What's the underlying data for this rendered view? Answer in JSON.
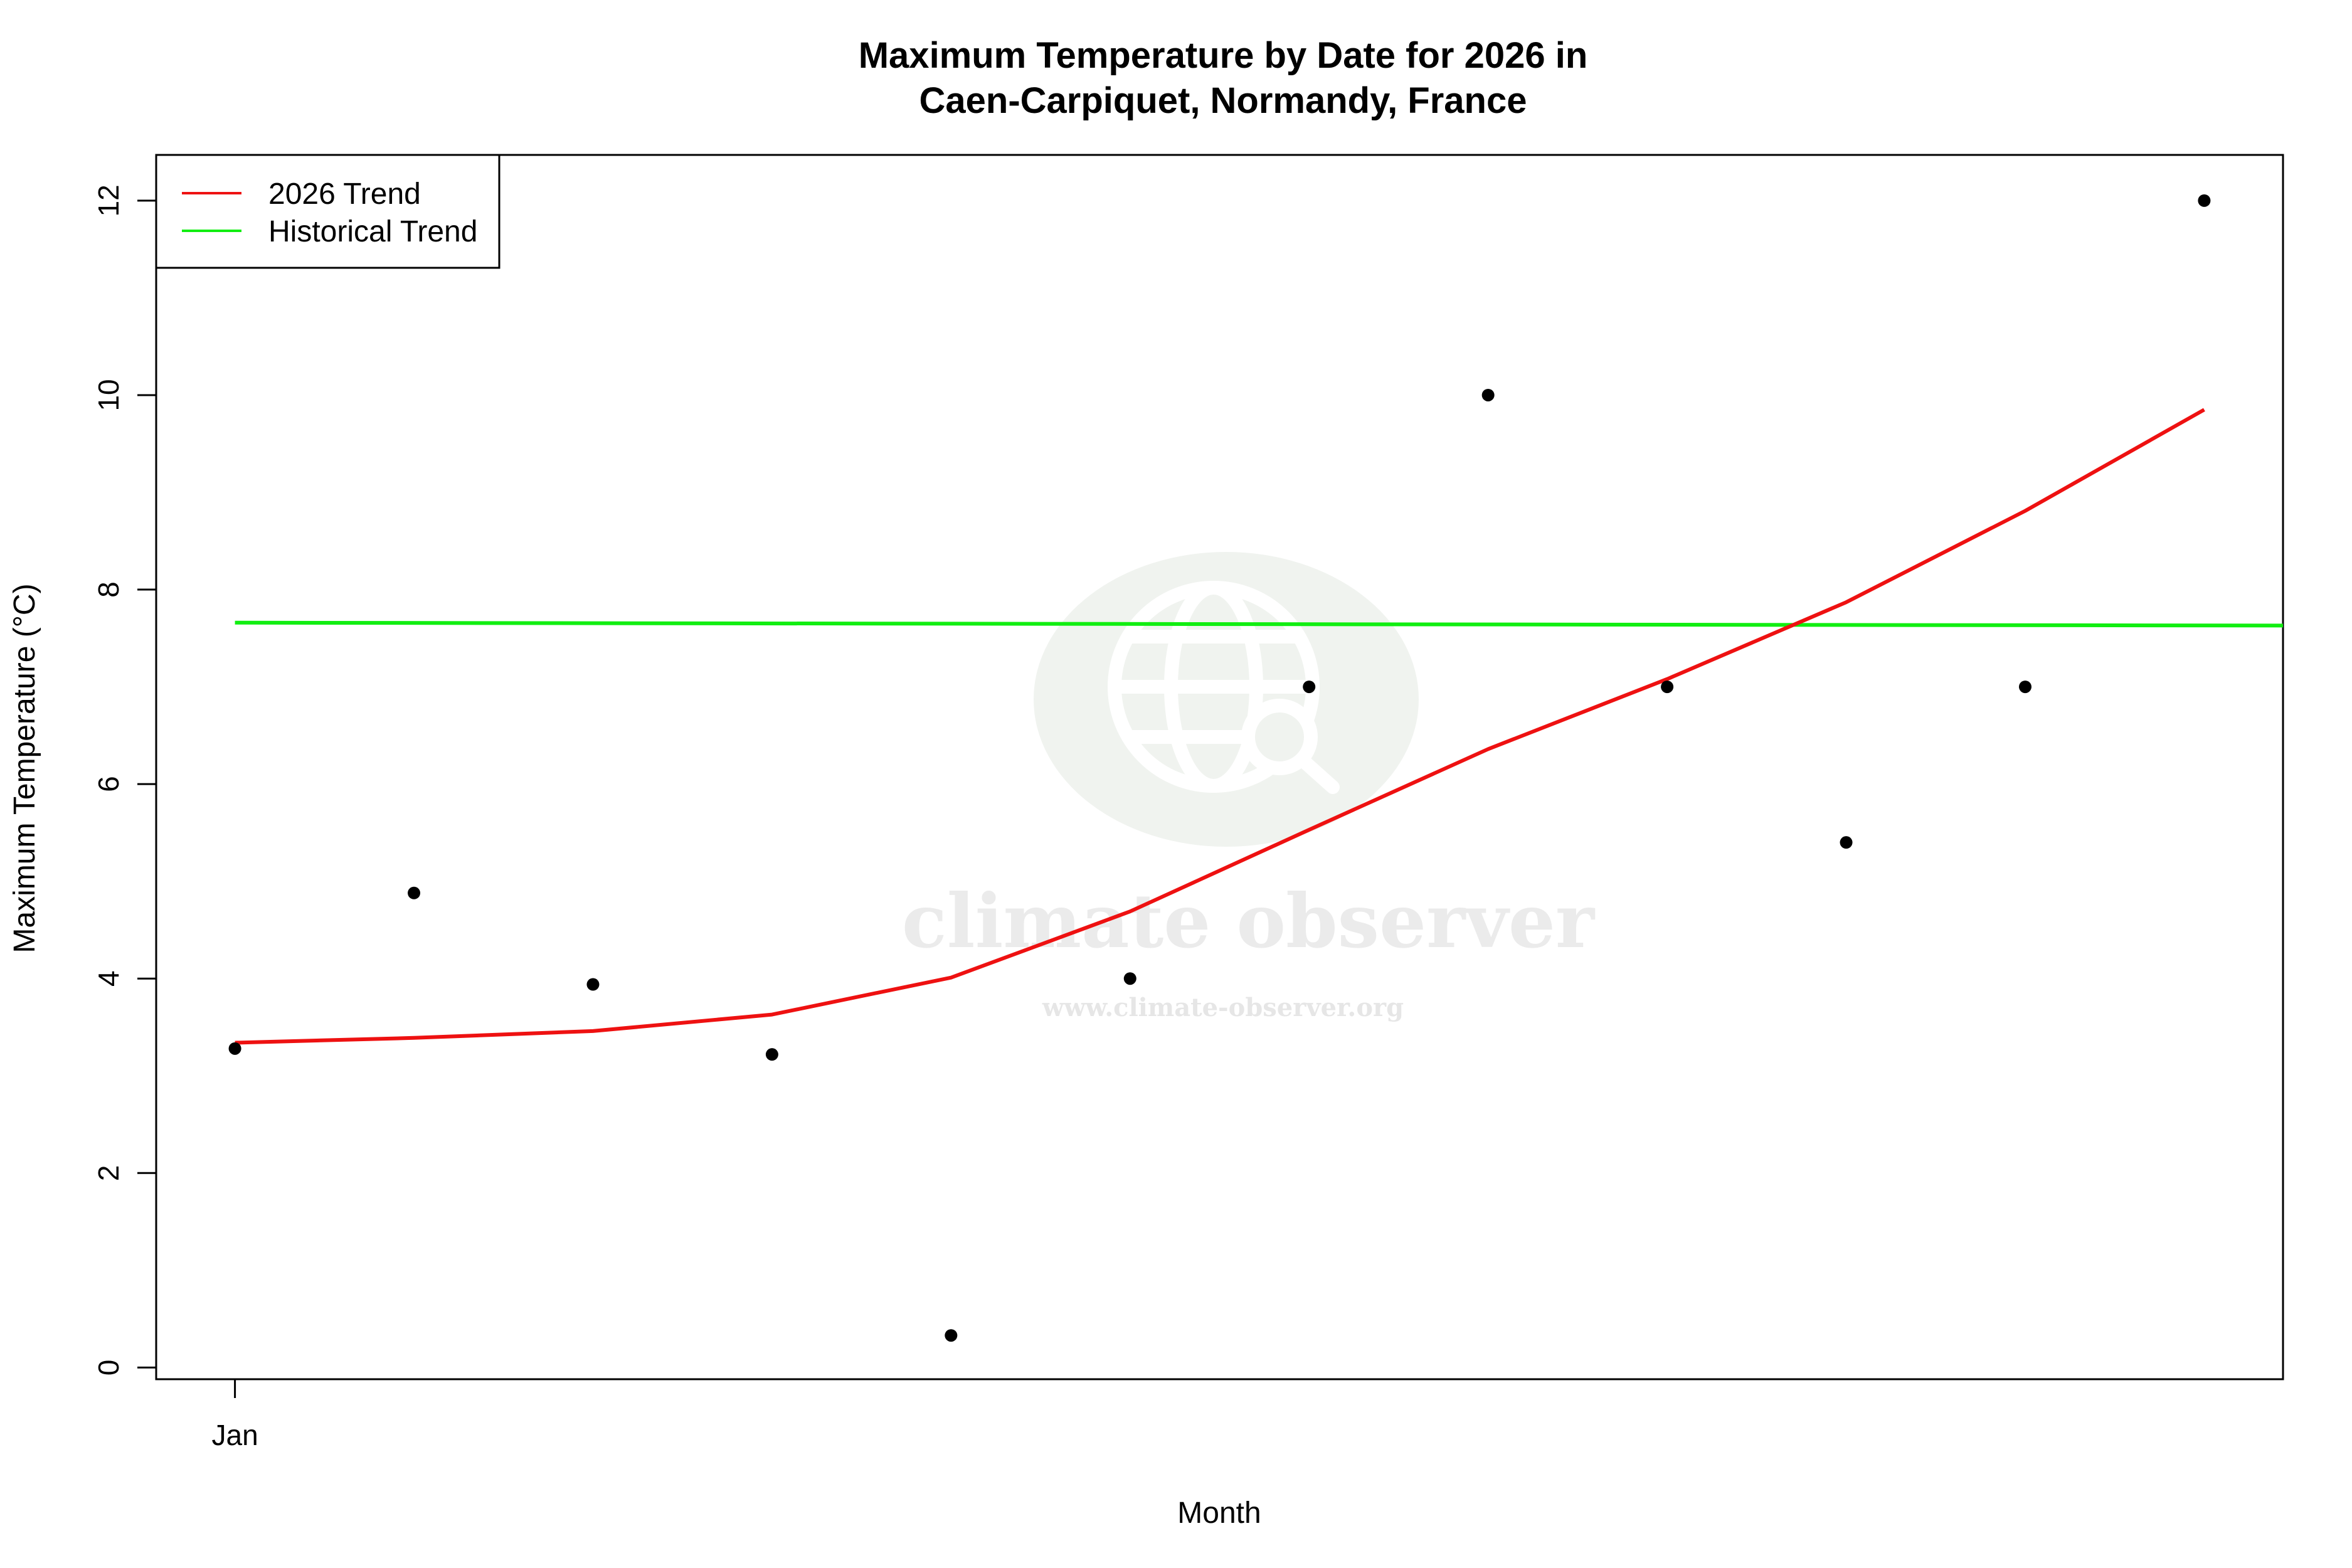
{
  "chart_data": {
    "type": "scatter",
    "title": [
      "Maximum Temperature by Date for 2026 in",
      "Caen-Carpiquet, Normandy, France"
    ],
    "xlabel": "Month",
    "ylabel": "Maximum Temperature (°C)",
    "x_tick_labels": [
      "Jan"
    ],
    "y_ticks": [
      0,
      2,
      4,
      6,
      8,
      10,
      12
    ],
    "ylim": [
      -0.12,
      12.47
    ],
    "xlim": [
      0.56,
      12.44
    ],
    "legend": {
      "placement": "top-left",
      "entries": [
        "2026 Trend",
        "Historical Trend"
      ]
    },
    "points": {
      "x": [
        1,
        2,
        3,
        4,
        5,
        6,
        7,
        8,
        9,
        10,
        11,
        12
      ],
      "y": [
        3.28,
        4.88,
        3.94,
        3.22,
        0.33,
        4.0,
        7.0,
        10.0,
        7.0,
        5.4,
        7.0,
        12.0
      ]
    },
    "series": [
      {
        "name": "2026 Trend",
        "color": "#ee1111",
        "x": [
          1,
          2,
          3,
          4,
          5,
          6,
          7,
          8,
          9,
          10,
          11,
          12
        ],
        "y": [
          3.34,
          3.39,
          3.46,
          3.63,
          4.01,
          4.69,
          5.53,
          6.36,
          7.08,
          7.87,
          8.81,
          9.85
        ]
      },
      {
        "name": "Historical Trend",
        "color": "#11ee11",
        "x": [
          1,
          12.44
        ],
        "y": [
          7.66,
          7.63
        ]
      }
    ],
    "grid": false
  },
  "watermark": {
    "brand": "climate observer",
    "url": "www.climate-observer.org"
  }
}
